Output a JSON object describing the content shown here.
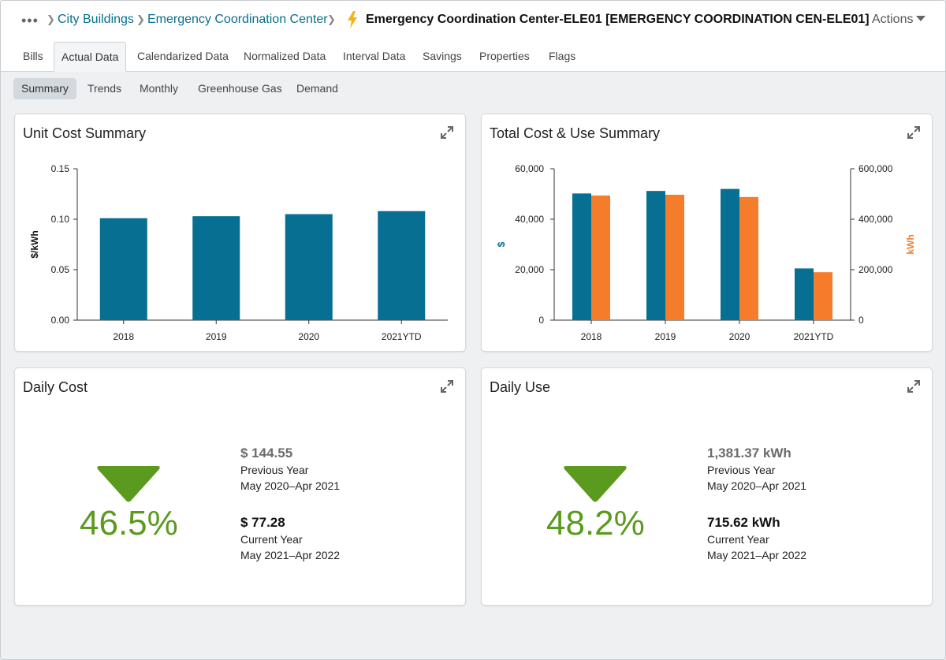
{
  "breadcrumb": {
    "more_icon": "more-dots-icon",
    "items": [
      "City Buildings",
      "Emergency Coordination Center"
    ],
    "title": "Emergency Coordination Center-ELE01 [EMERGENCY COORDINATION CEN-ELE01]",
    "title_icon": "lightning-bolt-icon",
    "actions_label": "Actions"
  },
  "tabs": [
    {
      "label": "Bills"
    },
    {
      "label": "Actual Data",
      "active": true
    },
    {
      "label": "Calendarized Data"
    },
    {
      "label": "Normalized Data"
    },
    {
      "label": "Interval Data"
    },
    {
      "label": "Savings"
    },
    {
      "label": "Properties"
    },
    {
      "label": "Flags"
    }
  ],
  "subtabs": [
    {
      "label": "Summary",
      "active": true
    },
    {
      "label": "Trends"
    },
    {
      "label": "Monthly"
    },
    {
      "label": "Greenhouse Gas"
    },
    {
      "label": "Demand"
    }
  ],
  "colors": {
    "teal": "#066f92",
    "orange": "#f57c2b",
    "green": "#5a9a1e",
    "link": "#0a6f8f"
  },
  "cards": {
    "unit_cost": {
      "title": "Unit Cost Summary"
    },
    "total_cost": {
      "title": "Total Cost & Use Summary"
    },
    "daily_cost": {
      "title": "Daily Cost",
      "percent": "46.5%",
      "direction": "down",
      "prev_value": "$ 144.55",
      "prev_label": "Previous Year",
      "prev_range": "May 2020–Apr 2021",
      "cur_value": "$ 77.28",
      "cur_label": "Current Year",
      "cur_range": "May 2021–Apr 2022"
    },
    "daily_use": {
      "title": "Daily Use",
      "percent": "48.2%",
      "direction": "down",
      "prev_value": "1,381.37 kWh",
      "prev_label": "Previous Year",
      "prev_range": "May 2020–Apr 2021",
      "cur_value": "715.62 kWh",
      "cur_label": "Current Year",
      "cur_range": "May 2021–Apr 2022"
    }
  },
  "chart_data": [
    {
      "type": "bar",
      "title": "Unit Cost Summary",
      "categories": [
        "2018",
        "2019",
        "2020",
        "2021YTD"
      ],
      "series": [
        {
          "values": [
            0.101,
            0.103,
            0.105,
            0.108
          ]
        }
      ],
      "ylabel": "$/kWh",
      "ylim": [
        0,
        0.15
      ],
      "yticks": [
        "0.00",
        "0.05",
        "0.10",
        "0.15"
      ],
      "grid": false
    },
    {
      "type": "bar",
      "title": "Total Cost & Use Summary",
      "categories": [
        "2018",
        "2019",
        "2020",
        "2021YTD"
      ],
      "series": [
        {
          "axis": "left",
          "values": [
            50200,
            51200,
            52000,
            20500
          ]
        },
        {
          "axis": "right",
          "values": [
            494000,
            497000,
            488000,
            190000
          ]
        }
      ],
      "ylabel": "$",
      "y2label": "kWh",
      "ylim": [
        0,
        60000
      ],
      "y2lim": [
        0,
        600000
      ],
      "yticks": [
        "0",
        "20,000",
        "40,000",
        "60,000"
      ],
      "y2ticks": [
        "0",
        "200,000",
        "400,000",
        "600,000"
      ],
      "grid": false
    }
  ]
}
